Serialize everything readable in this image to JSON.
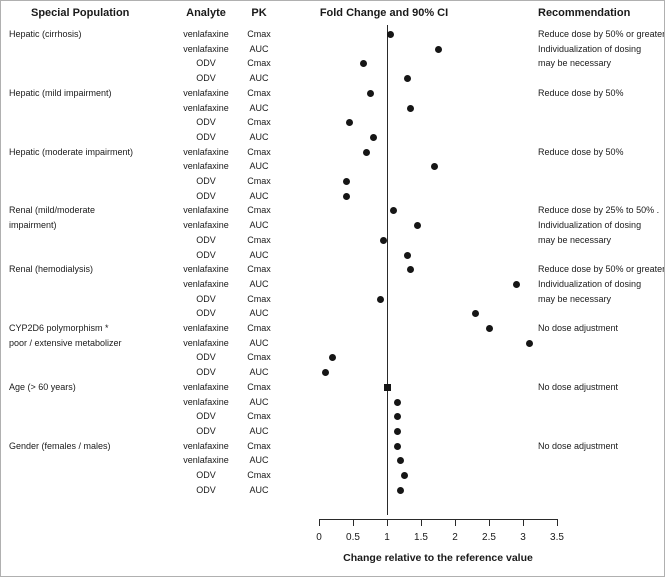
{
  "headers": {
    "population": "Special Population",
    "analyte": "Analyte",
    "pk": "PK",
    "fold_change": "Fold Change and 90% CI",
    "recommendation": "Recommendation"
  },
  "axis": {
    "ticks": [
      "0",
      "0.5",
      "1",
      "1.5",
      "2",
      "2.5",
      "3",
      "3.5"
    ],
    "title": "Change relative to the reference value",
    "min": 0,
    "max": 3.5,
    "reference": 1
  },
  "colors": {
    "marker": "#161616",
    "line": "#2a2a2a",
    "text": "#1a1a1a",
    "border": "#b0b0b0"
  },
  "chart_data": {
    "type": "scatter",
    "title": "Fold Change and 90% CI",
    "xlabel": "Change relative to the reference value",
    "xlim": [
      0,
      3.5
    ],
    "reference_line": 1,
    "groups": [
      {
        "population": [
          "Hepatic (cirrhosis)"
        ],
        "recommendation": [
          "Reduce dose by 50% or greater",
          "Individualization of dosing",
          "may be necessary"
        ],
        "rows": [
          {
            "analyte": "venlafaxine",
            "pk": "Cmax",
            "value": 1.05
          },
          {
            "analyte": "venlafaxine",
            "pk": "AUC",
            "value": 1.75
          },
          {
            "analyte": "ODV",
            "pk": "Cmax",
            "value": 0.65
          },
          {
            "analyte": "ODV",
            "pk": "AUC",
            "value": 1.3
          }
        ]
      },
      {
        "population": [
          "Hepatic (mild impairment)"
        ],
        "recommendation": [
          "Reduce dose by 50%"
        ],
        "rows": [
          {
            "analyte": "venlafaxine",
            "pk": "Cmax",
            "value": 0.75
          },
          {
            "analyte": "venlafaxine",
            "pk": "AUC",
            "value": 1.35
          },
          {
            "analyte": "ODV",
            "pk": "Cmax",
            "value": 0.45
          },
          {
            "analyte": "ODV",
            "pk": "AUC",
            "value": 0.8
          }
        ]
      },
      {
        "population": [
          "Hepatic (moderate impairment)"
        ],
        "recommendation": [
          "Reduce dose by 50%"
        ],
        "rows": [
          {
            "analyte": "venlafaxine",
            "pk": "Cmax",
            "value": 0.7
          },
          {
            "analyte": "venlafaxine",
            "pk": "AUC",
            "value": 1.7
          },
          {
            "analyte": "ODV",
            "pk": "Cmax",
            "value": 0.4
          },
          {
            "analyte": "ODV",
            "pk": "AUC",
            "value": 0.4
          }
        ]
      },
      {
        "population": [
          "Renal (mild/moderate",
          "impairment)"
        ],
        "recommendation": [
          "Reduce dose by 25% to 50% .",
          "Individualization of dosing",
          "may be necessary"
        ],
        "rows": [
          {
            "analyte": "venlafaxine",
            "pk": "Cmax",
            "value": 1.1
          },
          {
            "analyte": "venlafaxine",
            "pk": "AUC",
            "value": 1.45
          },
          {
            "analyte": "ODV",
            "pk": "Cmax",
            "value": 0.95
          },
          {
            "analyte": "ODV",
            "pk": "AUC",
            "value": 1.3
          }
        ]
      },
      {
        "population": [
          "Renal (hemodialysis)"
        ],
        "recommendation": [
          "Reduce dose by 50% or greater",
          "Individualization of dosing",
          "may be necessary"
        ],
        "rows": [
          {
            "analyte": "venlafaxine",
            "pk": "Cmax",
            "value": 1.35
          },
          {
            "analyte": "venlafaxine",
            "pk": "AUC",
            "value": 2.9
          },
          {
            "analyte": "ODV",
            "pk": "Cmax",
            "value": 0.9
          },
          {
            "analyte": "ODV",
            "pk": "AUC",
            "value": 2.3
          }
        ]
      },
      {
        "population": [
          "CYP2D6 polymorphism *",
          "poor / extensive metabolizer"
        ],
        "recommendation": [
          "No dose adjustment"
        ],
        "rows": [
          {
            "analyte": "venlafaxine",
            "pk": "Cmax",
            "value": 2.5
          },
          {
            "analyte": "venlafaxine",
            "pk": "AUC",
            "value": 3.1
          },
          {
            "analyte": "ODV",
            "pk": "Cmax",
            "value": 0.2
          },
          {
            "analyte": "ODV",
            "pk": "AUC",
            "value": 0.1
          }
        ]
      },
      {
        "population": [
          "Age (> 60 years)"
        ],
        "recommendation": [
          "No dose adjustment"
        ],
        "rows": [
          {
            "analyte": "venlafaxine",
            "pk": "Cmax",
            "value": 1.0,
            "shape": "square"
          },
          {
            "analyte": "venlafaxine",
            "pk": "AUC",
            "value": 1.15
          },
          {
            "analyte": "ODV",
            "pk": "Cmax",
            "value": 1.15
          },
          {
            "analyte": "ODV",
            "pk": "AUC",
            "value": 1.15
          }
        ]
      },
      {
        "population": [
          "Gender (females / males)"
        ],
        "recommendation": [
          "No dose adjustment"
        ],
        "rows": [
          {
            "analyte": "venlafaxine",
            "pk": "Cmax",
            "value": 1.15
          },
          {
            "analyte": "venlafaxine",
            "pk": "AUC",
            "value": 1.2
          },
          {
            "analyte": "ODV",
            "pk": "Cmax",
            "value": 1.25
          },
          {
            "analyte": "ODV",
            "pk": "AUC",
            "value": 1.2
          }
        ]
      }
    ]
  }
}
